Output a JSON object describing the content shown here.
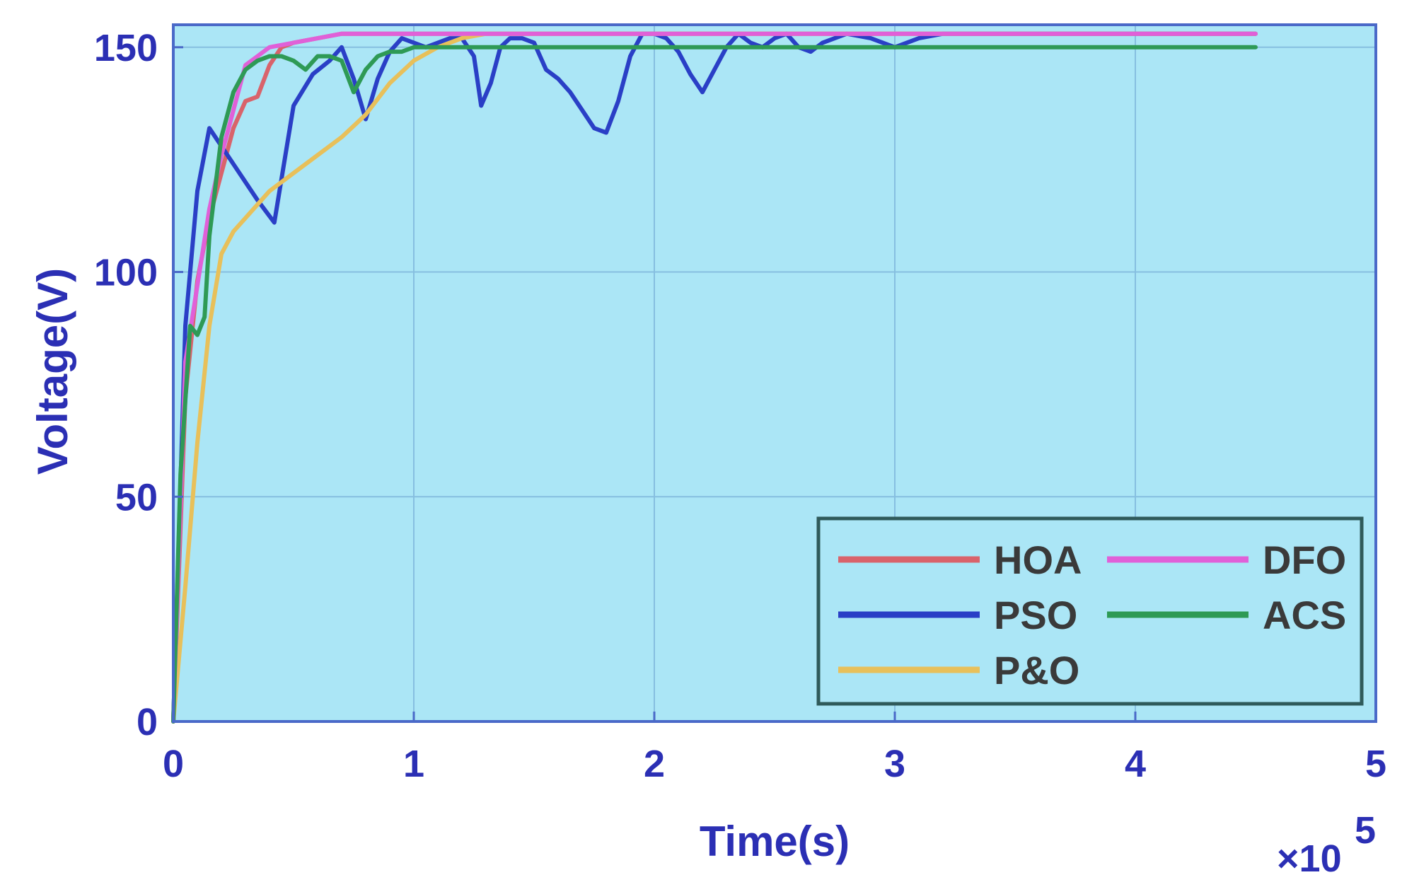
{
  "chart_data": {
    "type": "line",
    "title": "",
    "xlabel": "Time(s)",
    "ylabel": "Voltage(V)",
    "x_exponent": {
      "base": "×10",
      "power": "5"
    },
    "xlim": [
      0,
      5
    ],
    "ylim": [
      0,
      155
    ],
    "xticks": [
      0,
      1,
      2,
      3,
      4,
      5
    ],
    "yticks": [
      0,
      50,
      100,
      150
    ],
    "grid": true,
    "legend_position": "bottom-right",
    "plot_background": "#abe6f6",
    "series": [
      {
        "name": "HOA",
        "color": "#d9636b",
        "x": [
          0,
          0.05,
          0.1,
          0.15,
          0.2,
          0.25,
          0.3,
          0.35,
          0.4,
          0.45,
          0.5,
          0.6,
          0.7,
          0.8,
          1.0,
          1.5,
          2.0,
          3.0,
          4.0,
          4.5
        ],
        "y": [
          0,
          72,
          98,
          112,
          122,
          132,
          138,
          139,
          146,
          150,
          151,
          152,
          153,
          153,
          153,
          153,
          153,
          153,
          153,
          153
        ]
      },
      {
        "name": "PSO",
        "color": "#2a3fc6",
        "x": [
          0,
          0.05,
          0.1,
          0.15,
          0.2,
          0.25,
          0.3,
          0.35,
          0.42,
          0.5,
          0.58,
          0.65,
          0.7,
          0.75,
          0.8,
          0.85,
          0.9,
          0.95,
          1.0,
          1.05,
          1.1,
          1.15,
          1.2,
          1.25,
          1.28,
          1.32,
          1.36,
          1.4,
          1.45,
          1.5,
          1.55,
          1.6,
          1.65,
          1.7,
          1.75,
          1.8,
          1.85,
          1.9,
          1.95,
          2.0,
          2.05,
          2.1,
          2.15,
          2.2,
          2.25,
          2.3,
          2.35,
          2.4,
          2.45,
          2.5,
          2.55,
          2.6,
          2.65,
          2.7,
          2.8,
          2.9,
          2.95,
          3.0,
          3.05,
          3.1,
          3.2,
          3.5,
          4.0,
          4.5
        ],
        "y": [
          0,
          88,
          118,
          132,
          128,
          124,
          120,
          116,
          111,
          137,
          144,
          147,
          150,
          143,
          134,
          143,
          149,
          152,
          151,
          150,
          151,
          152,
          152,
          148,
          137,
          142,
          150,
          152,
          152,
          151,
          145,
          143,
          140,
          136,
          132,
          131,
          138,
          148,
          153,
          153,
          152,
          149,
          144,
          140,
          145,
          150,
          153,
          151,
          150,
          152,
          153,
          150,
          149,
          151,
          153,
          152,
          151,
          150,
          151,
          152,
          153,
          153,
          153,
          153
        ]
      },
      {
        "name": "P&O",
        "color": "#e8c05a",
        "x": [
          0,
          0.05,
          0.1,
          0.15,
          0.2,
          0.25,
          0.3,
          0.4,
          0.5,
          0.6,
          0.7,
          0.8,
          0.9,
          1.0,
          1.1,
          1.2,
          1.3,
          1.5,
          2.0,
          3.0,
          4.0,
          4.5
        ],
        "y": [
          0,
          30,
          62,
          88,
          104,
          109,
          112,
          118,
          122,
          126,
          130,
          135,
          142,
          147,
          150,
          152,
          153,
          153,
          153,
          153,
          153,
          153
        ]
      },
      {
        "name": "DFO",
        "color": "#e060d8",
        "x": [
          0,
          0.05,
          0.1,
          0.15,
          0.2,
          0.25,
          0.3,
          0.35,
          0.4,
          0.5,
          0.6,
          0.7,
          0.8,
          1.0,
          1.5,
          2.0,
          3.0,
          4.0,
          4.5
        ],
        "y": [
          0,
          80,
          97,
          114,
          126,
          136,
          146,
          148,
          150,
          151,
          152,
          153,
          153,
          153,
          153,
          153,
          153,
          153,
          153
        ]
      },
      {
        "name": "ACS",
        "color": "#2e9a55",
        "x": [
          0,
          0.03,
          0.07,
          0.1,
          0.13,
          0.15,
          0.2,
          0.25,
          0.3,
          0.35,
          0.4,
          0.45,
          0.5,
          0.55,
          0.6,
          0.65,
          0.7,
          0.75,
          0.8,
          0.85,
          0.9,
          0.95,
          1.0,
          1.1,
          1.5,
          2.0,
          3.0,
          4.0,
          4.5
        ],
        "y": [
          0,
          55,
          88,
          86,
          90,
          108,
          130,
          140,
          145,
          147,
          148,
          148,
          147,
          145,
          148,
          148,
          147,
          140,
          145,
          148,
          149,
          149,
          150,
          150,
          150,
          150,
          150,
          150,
          150
        ]
      }
    ],
    "legend_layout": [
      [
        "HOA",
        "DFO"
      ],
      [
        "PSO",
        "ACS"
      ],
      [
        "P&O"
      ]
    ]
  }
}
